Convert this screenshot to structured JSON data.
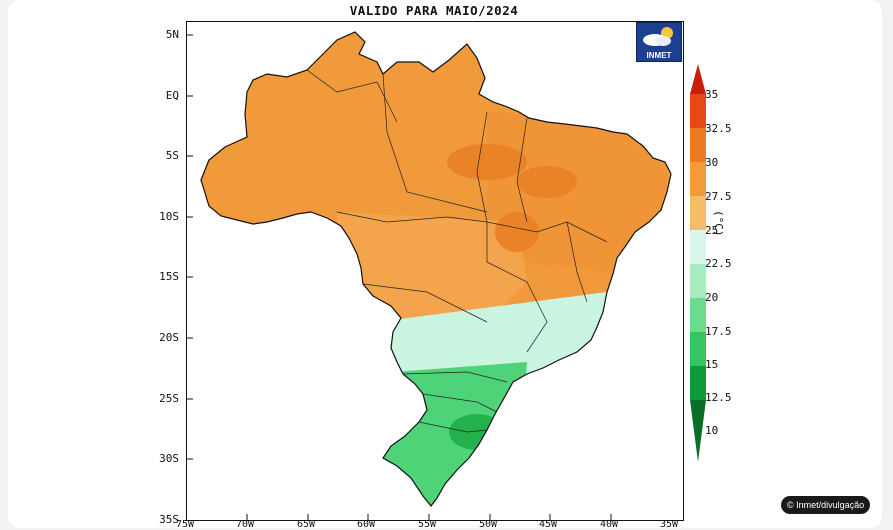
{
  "map": {
    "title": "VALIDO PARA MAIO/2024",
    "lat_labels": [
      "5N",
      "EQ",
      "5S",
      "10S",
      "15S",
      "20S",
      "25S",
      "30S",
      "35S"
    ],
    "lon_labels": [
      "75W",
      "70W",
      "65W",
      "60W",
      "55W",
      "50W",
      "45W",
      "40W",
      "35W"
    ],
    "logo_text": "INMET",
    "colorbar": {
      "unit": "(°C)",
      "levels": [
        "35",
        "32.5",
        "30",
        "27.5",
        "25",
        "22.5",
        "20",
        "17.5",
        "15",
        "12.5",
        "10"
      ],
      "colors": [
        "#c8200a",
        "#e64a14",
        "#ee7a24",
        "#f39a3a",
        "#f7bd66",
        "#d8f6ea",
        "#a6ecc0",
        "#6bdc8e",
        "#35c662",
        "#119a3a",
        "#087026"
      ]
    },
    "regions": {
      "north": "#f19a3c",
      "northeast": "#f09537",
      "center_west": "#f3a44c",
      "southeast": "#c9f4df",
      "south": "#4fd378"
    }
  },
  "credit": "© Inmet/divulgação"
}
